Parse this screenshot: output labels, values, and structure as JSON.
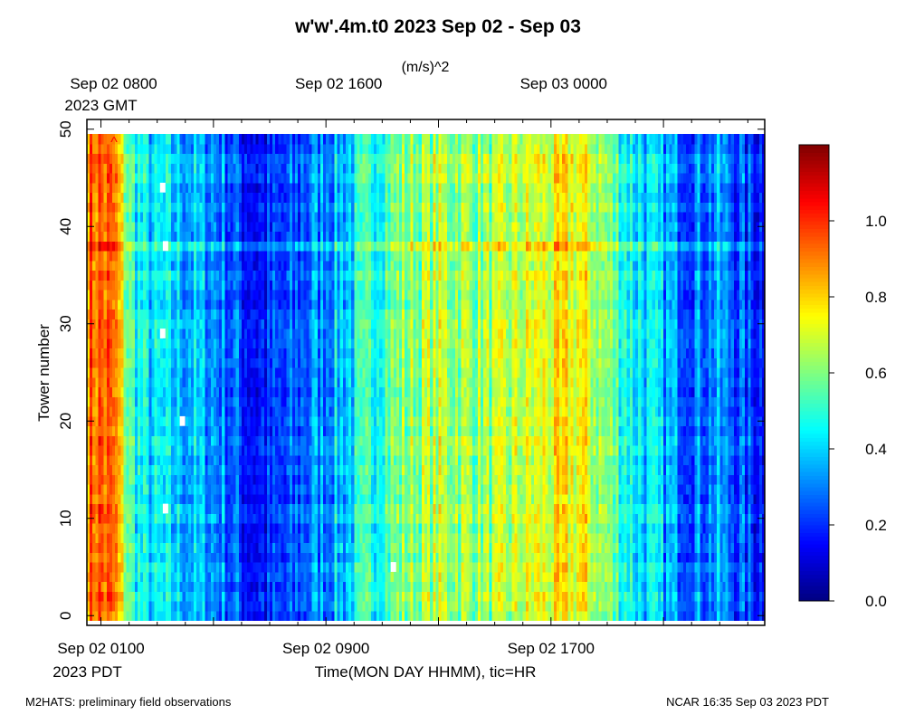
{
  "chart_data": {
    "type": "heatmap",
    "title": "w'w'.4m.t0 2023 Sep 02 - Sep 03",
    "units": "(m/s)^2",
    "ylabel": "Tower number",
    "xlabel": "Time(MON DAY HHMM), tic=HR",
    "xlim_hours_from_start": [
      -0.5,
      23.6
    ],
    "ylim": [
      -1,
      51
    ],
    "gmt_ticks": [
      {
        "hours_from_start": 0,
        "label": "Sep 02 0800",
        "sublabel": "2023 GMT"
      },
      {
        "hours_from_start": 8,
        "label": "Sep 02 1600",
        "sublabel": ""
      },
      {
        "hours_from_start": 16,
        "label": "Sep 03 0000",
        "sublabel": ""
      }
    ],
    "pdt_ticks": [
      {
        "hours_from_start": 0,
        "label": "Sep 02 0100",
        "sublabel": "2023 PDT"
      },
      {
        "hours_from_start": 8,
        "label": "Sep 02 0900",
        "sublabel": ""
      },
      {
        "hours_from_start": 16,
        "label": "Sep 02 1700",
        "sublabel": ""
      }
    ],
    "y_ticks": [
      0,
      10,
      20,
      30,
      40,
      50
    ],
    "colorbar": {
      "min": 0.0,
      "max": 1.2,
      "ticks": [
        {
          "value": 0.0,
          "label": "0.0"
        },
        {
          "value": 0.2,
          "label": "0.2"
        },
        {
          "value": 0.4,
          "label": "0.4"
        },
        {
          "value": 0.6,
          "label": "0.6"
        },
        {
          "value": 0.8,
          "label": "0.8"
        },
        {
          "value": 1.0,
          "label": "1.0"
        }
      ]
    },
    "towers": 50,
    "time_profile": {
      "description": "typical w'w' (m/s)^2 versus hours from Sep 02 0100 PDT, all towers",
      "hours": [
        -0.5,
        0.0,
        0.5,
        1.0,
        1.5,
        2.0,
        3.0,
        4.0,
        5.0,
        5.5,
        6.5,
        7.5,
        9.0,
        10.0,
        11.0,
        12.0,
        13.0,
        14.0,
        15.0,
        16.0,
        17.0,
        18.0,
        19.0,
        20.0,
        21.0,
        22.0,
        23.0,
        23.6
      ],
      "values": [
        0.92,
        0.95,
        0.9,
        0.55,
        0.42,
        0.4,
        0.38,
        0.34,
        0.22,
        0.17,
        0.2,
        0.3,
        0.42,
        0.55,
        0.62,
        0.66,
        0.64,
        0.62,
        0.68,
        0.72,
        0.75,
        0.6,
        0.45,
        0.35,
        0.3,
        0.32,
        0.22,
        0.2
      ]
    },
    "missing_cells": [
      {
        "hours_from_start": 2.1,
        "tower": 44
      },
      {
        "hours_from_start": 2.2,
        "tower": 38
      },
      {
        "hours_from_start": 2.1,
        "tower": 29
      },
      {
        "hours_from_start": 2.8,
        "tower": 20
      },
      {
        "hours_from_start": 2.2,
        "tower": 11
      },
      {
        "hours_from_start": 10.3,
        "tower": 5
      }
    ],
    "annotations": [
      "^"
    ]
  },
  "footer": {
    "left": "M2HATS: preliminary field observations",
    "right": "NCAR 16:35 Sep 03 2023 PDT"
  }
}
